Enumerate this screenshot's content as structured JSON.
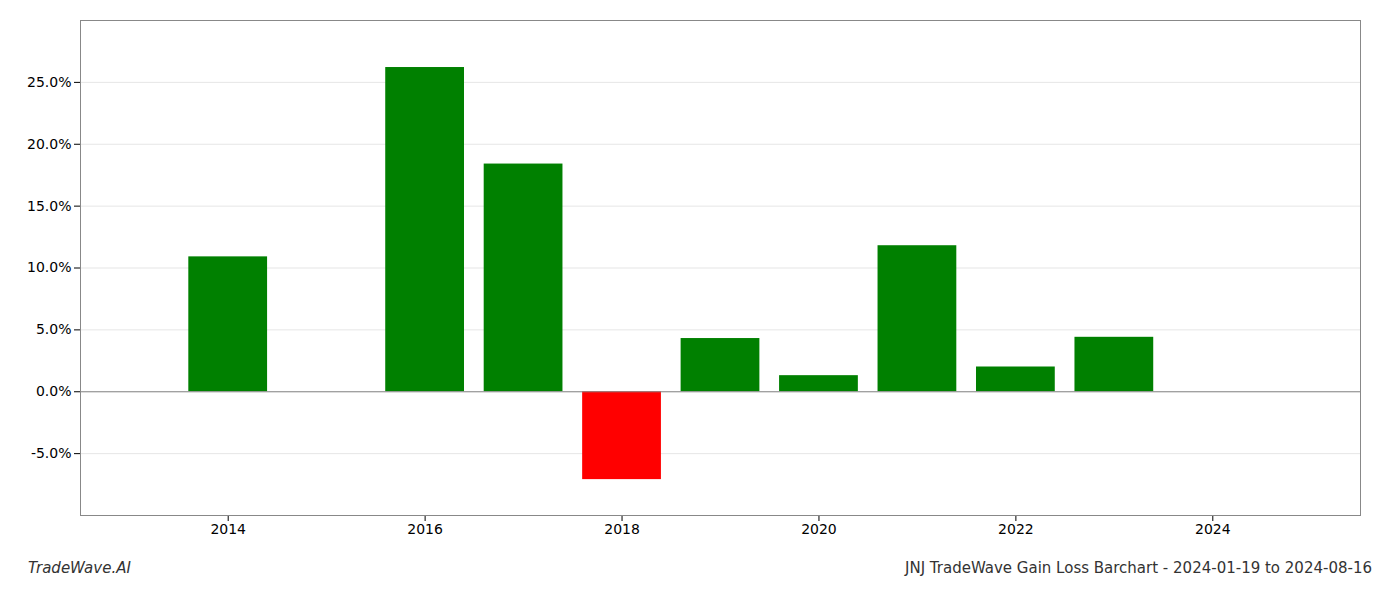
{
  "chart_data": {
    "type": "bar",
    "title": "JNJ TradeWave Gain Loss Barchart - 2024-01-19 to 2024-08-16",
    "annotations": [
      "TradeWave.AI"
    ],
    "x": [
      2014,
      2016,
      2017,
      2018,
      2019,
      2020,
      2021,
      2022,
      2023
    ],
    "values": [
      0.109,
      0.262,
      0.184,
      -0.071,
      0.043,
      0.013,
      0.118,
      0.02,
      0.044
    ],
    "colors": [
      "#008000",
      "#008000",
      "#008000",
      "#ff0000",
      "#008000",
      "#008000",
      "#008000",
      "#008000",
      "#008000"
    ],
    "xlim": [
      2012.5,
      2025.5
    ],
    "xticks": [
      2014,
      2016,
      2018,
      2020,
      2022,
      2024
    ],
    "ylim": [
      -0.1,
      0.3
    ],
    "yticks": [
      {
        "value": -0.05,
        "label": "-5.0%"
      },
      {
        "value": 0.0,
        "label": "0.0%"
      },
      {
        "value": 0.05,
        "label": "5.0%"
      },
      {
        "value": 0.1,
        "label": "10.0%"
      },
      {
        "value": 0.15,
        "label": "15.0%"
      },
      {
        "value": 0.2,
        "label": "20.0%"
      },
      {
        "value": 0.25,
        "label": "25.0%"
      }
    ],
    "grid": true
  }
}
